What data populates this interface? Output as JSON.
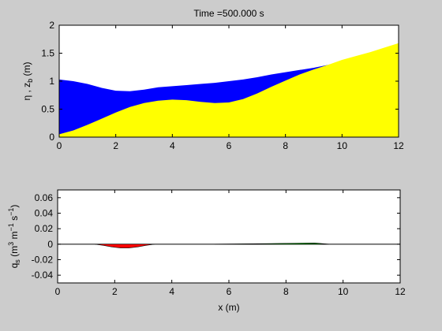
{
  "window": {
    "background": "#cccccc"
  },
  "chart_data": [
    {
      "type": "area",
      "title": "Time =500.000 s",
      "xlabel": "",
      "ylabel": "η , z_b (m)",
      "ylabel_parts": {
        "main": "η , z",
        "sub": "b",
        "unit": " (m)"
      },
      "xlim": [
        0,
        12
      ],
      "ylim": [
        0,
        2
      ],
      "xticks": [
        0,
        2,
        4,
        6,
        8,
        10,
        12
      ],
      "yticks": [
        0,
        0.5,
        1,
        1.5,
        2
      ],
      "grid": false,
      "series": [
        {
          "color": "#0000ff",
          "x": [
            0,
            0.5,
            1,
            1.5,
            2,
            2.5,
            3,
            3.5,
            4,
            4.5,
            5,
            5.5,
            6,
            6.5,
            7,
            7.5,
            8,
            8.5,
            9,
            9.5,
            9.8
          ],
          "values": [
            1.03,
            1.0,
            0.95,
            0.88,
            0.83,
            0.82,
            0.85,
            0.89,
            0.91,
            0.93,
            0.95,
            0.97,
            1.0,
            1.03,
            1.07,
            1.12,
            1.16,
            1.2,
            1.24,
            1.29,
            1.33
          ]
        },
        {
          "color": "#ffff00",
          "x": [
            0,
            0.5,
            1,
            1.5,
            2,
            2.5,
            3,
            3.5,
            4,
            4.5,
            5,
            5.5,
            6,
            6.5,
            7,
            7.5,
            8,
            8.5,
            9,
            9.5,
            10,
            10.5,
            11,
            11.5,
            12
          ],
          "values": [
            0.05,
            0.12,
            0.22,
            0.33,
            0.44,
            0.54,
            0.61,
            0.65,
            0.67,
            0.66,
            0.63,
            0.61,
            0.62,
            0.68,
            0.78,
            0.9,
            1.01,
            1.12,
            1.21,
            1.29,
            1.38,
            1.45,
            1.52,
            1.6,
            1.68
          ]
        }
      ]
    },
    {
      "type": "area",
      "title": "",
      "xlabel": "x (m)",
      "ylabel": "q_s (m^3 m^-1 s^-1)",
      "ylabel_parts": {
        "q": "q",
        "qsub": "s",
        "open": " (m",
        "e1": "3",
        "m": " m",
        "e2": "−1",
        "s": " s",
        "e3": "−1",
        "close": ")"
      },
      "xlim": [
        0,
        12
      ],
      "ylim": [
        -0.05,
        0.07
      ],
      "xticks": [
        0,
        2,
        4,
        6,
        8,
        10,
        12
      ],
      "yticks": [
        -0.04,
        -0.02,
        0,
        0.02,
        0.04,
        0.06
      ],
      "ytick_labels": [
        "-0.04",
        "-0.02",
        "0",
        "0.02",
        "0.04",
        "0.06"
      ],
      "grid": false,
      "series": [
        {
          "color": "#ff0000",
          "x": [
            1.3,
            1.6,
            1.9,
            2.2,
            2.5,
            2.8,
            3.1,
            3.4
          ],
          "values": [
            0,
            -0.0015,
            -0.0035,
            -0.0048,
            -0.0048,
            -0.0035,
            -0.0015,
            0
          ]
        },
        {
          "color": "#00aa00",
          "x": [
            5.5,
            6.5,
            7.5,
            8.5,
            9.0,
            9.5
          ],
          "values": [
            0,
            0.0004,
            0.0008,
            0.0014,
            0.0016,
            0
          ]
        }
      ]
    }
  ]
}
